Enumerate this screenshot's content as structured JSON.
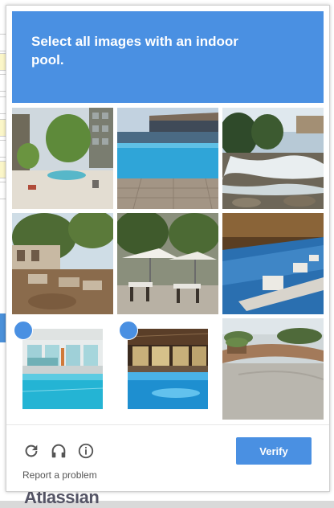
{
  "challenge": {
    "prompt": "Select all images with an indoor pool.",
    "tiles": [
      {
        "scene": "apartment-courtyard-pool",
        "selected": false
      },
      {
        "scene": "outdoor-pool-deck",
        "selected": false
      },
      {
        "scene": "river-rapids",
        "selected": false
      },
      {
        "scene": "patio-garden",
        "selected": false
      },
      {
        "scene": "outdoor-dining-umbrellas",
        "selected": false
      },
      {
        "scene": "infinity-pool-edge",
        "selected": false
      },
      {
        "scene": "indoor-pool-windows",
        "selected": true
      },
      {
        "scene": "indoor-pool-hotel",
        "selected": true
      },
      {
        "scene": "patio-bench",
        "selected": false
      }
    ],
    "report_label": "Report a problem",
    "verify_label": "Verify",
    "icons": [
      "reload-icon",
      "audio-icon",
      "info-icon",
      "checkmark-icon"
    ],
    "accent_color": "#4a90e2"
  },
  "background": {
    "logo_text": "Atlassian"
  }
}
